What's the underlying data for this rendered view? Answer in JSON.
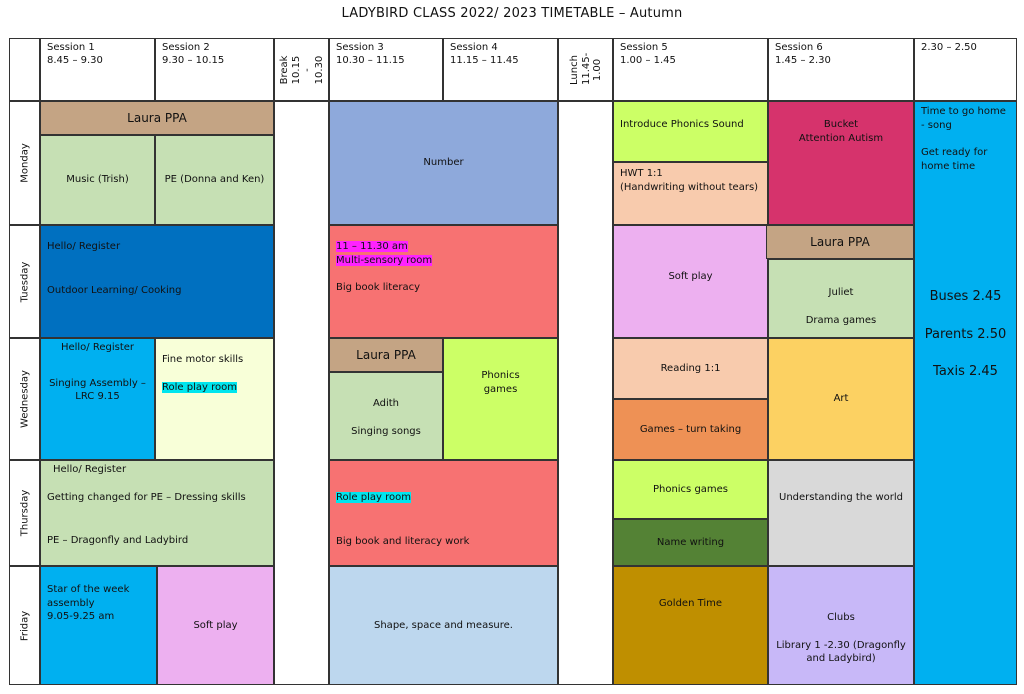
{
  "title": "LADYBIRD CLASS 2022/ 2023 TIMETABLE – Autumn",
  "header": {
    "s1": {
      "label": "Session 1",
      "time": "8.45 – 9.30"
    },
    "s2": {
      "label": "Session 2",
      "time": "9.30 – 10.15"
    },
    "break": {
      "label": "Break",
      "time": "10.15 - 10.30"
    },
    "s3": {
      "label": "Session 3",
      "time": "10.30 – 11.15"
    },
    "s4": {
      "label": "Session 4",
      "time": "11.15 – 11.45"
    },
    "lunch": {
      "label": "Lunch",
      "time": "11.45- 1.00"
    },
    "s5": {
      "label": "Session 5",
      "time": "1.00 – 1.45"
    },
    "s6": {
      "label": "Session 6",
      "time": "1.45 – 2.30"
    },
    "s7": {
      "time": "2.30 – 2.50"
    }
  },
  "days": [
    "Monday",
    "Tuesday",
    "Wednesday",
    "Thursday",
    "Friday"
  ],
  "monday": {
    "ppa": "Laura PPA",
    "s1": "Music (Trish)",
    "s2": "PE (Donna and Ken)",
    "s34": "Number",
    "s5a": "Introduce Phonics Sound",
    "s5b_1": "HWT 1:1",
    "s5b_2": "(Handwriting without tears)",
    "s6_1": "Bucket",
    "s6_2": "Attention Autism"
  },
  "tuesday": {
    "s12_1": "Hello/ Register",
    "s12_2": "Outdoor Learning/ Cooking",
    "s34_1": "11 – 11.30 am",
    "s34_2": "Multi-sensory room",
    "s34_3": "Big book literacy",
    "s5": "Soft play",
    "s6_ppa": "Laura PPA",
    "s6_1": "Juliet",
    "s6_2": "Drama games"
  },
  "wednesday": {
    "s1_1": "Hello/ Register",
    "s1_2": "Singing Assembly – LRC 9.15",
    "s2_1": "Fine motor skills",
    "s2_2": "Role play room",
    "s3_ppa": "Laura PPA",
    "s3_1": "Adith",
    "s3_2": "Singing songs",
    "s4": "Phonics games",
    "s5a": "Reading 1:1",
    "s5b": "Games – turn taking",
    "s6": "Art"
  },
  "thursday": {
    "s12_1": "Hello/ Register",
    "s12_2": "Getting changed for PE – Dressing skills",
    "s12_3": "PE – Dragonfly and Ladybird",
    "s34_1": "Role play room",
    "s34_2": "Big book and literacy work",
    "s5a": "Phonics games",
    "s5b": "Name writing",
    "s6": "Understanding the world"
  },
  "friday": {
    "s1_1": "Star of the week assembly",
    "s1_2": "9.05-9.25 am",
    "s2": "Soft play",
    "s34": "Shape, space and measure.",
    "s5": "Golden Time",
    "s6_1": "Clubs",
    "s6_2": "Library 1 -2.30 (Dragonfly and Ladybird)"
  },
  "endday": {
    "l1": "Time to go home - song",
    "l2": "Get ready for home time",
    "buses": "Buses 2.45",
    "parents": "Parents 2.50",
    "taxis": "Taxis 2.45"
  },
  "colors": {
    "green": "#c6e0b4",
    "tan": "#c4a484",
    "blue_number": "#8ea9db",
    "lime": "#ccff66",
    "peach": "#f8cbad",
    "magenta": "#d6336c",
    "cyan": "#00b0f0",
    "darkblue": "#0070c0",
    "salmon": "#f77272",
    "lilac": "#edb0f0",
    "cream": "#f8ffd8",
    "orange": "#ee9155",
    "gold": "#fcd162",
    "grey": "#d9d9d9",
    "olive": "#548235",
    "lightblue": "#bdd7ee",
    "mustard": "#bf8f00",
    "lavender": "#c8b8f8"
  }
}
